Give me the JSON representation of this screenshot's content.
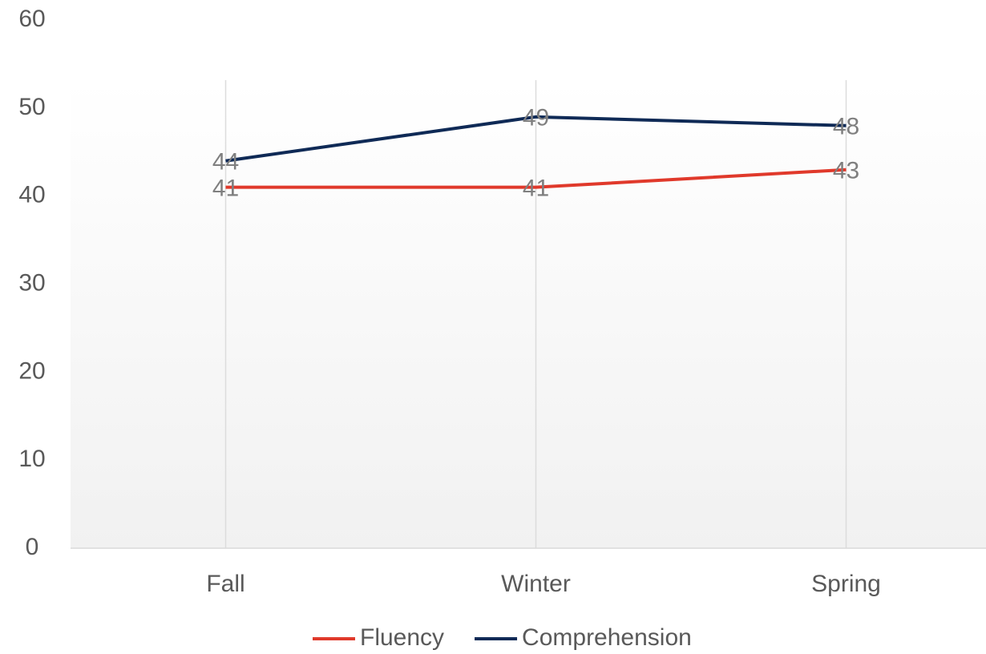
{
  "chart_data": {
    "type": "line",
    "categories": [
      "Fall",
      "Winter",
      "Spring"
    ],
    "series": [
      {
        "name": "Fluency",
        "color": "#e0392b",
        "values": [
          41,
          41,
          43
        ]
      },
      {
        "name": "Comprehension",
        "color": "#0f2a56",
        "values": [
          44,
          49,
          48
        ]
      }
    ],
    "ylim": [
      0,
      60
    ],
    "yticks": [
      0,
      10,
      20,
      30,
      40,
      50,
      60
    ],
    "legend": "bottom"
  }
}
